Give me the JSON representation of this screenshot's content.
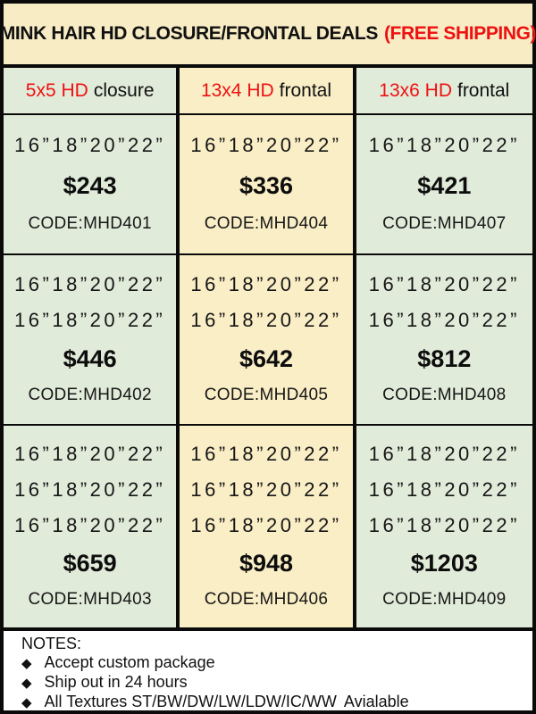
{
  "title": {
    "main": "MINK HAIR HD CLOSURE/FRONTAL DEALS",
    "highlight": "(FREE SHIPPING)"
  },
  "colors": {
    "accent_red": "#ee1111",
    "green_cell": "#e1ebda",
    "cream_cell": "#faeec6",
    "border": "#0a0a0a",
    "notes_bg": "#ffffff"
  },
  "columns": [
    {
      "size_label": "5x5 HD",
      "type_label": "closure",
      "deals": [
        {
          "sizes": [
            "16”18”20”22”"
          ],
          "price": "$243",
          "code": "CODE:MHD401"
        },
        {
          "sizes": [
            "16”18”20”22”",
            "16”18”20”22”"
          ],
          "price": "$446",
          "code": "CODE:MHD402"
        },
        {
          "sizes": [
            "16”18”20”22”",
            "16”18”20”22”",
            "16”18”20”22”"
          ],
          "price": "$659",
          "code": "CODE:MHD403"
        }
      ]
    },
    {
      "size_label": "13x4 HD",
      "type_label": "frontal",
      "deals": [
        {
          "sizes": [
            "16”18”20”22”"
          ],
          "price": "$336",
          "code": "CODE:MHD404"
        },
        {
          "sizes": [
            "16”18”20”22”",
            "16”18”20”22”"
          ],
          "price": "$642",
          "code": "CODE:MHD405"
        },
        {
          "sizes": [
            "16”18”20”22”",
            "16”18”20”22”",
            "16”18”20”22”"
          ],
          "price": "$948",
          "code": "CODE:MHD406"
        }
      ]
    },
    {
      "size_label": "13x6 HD",
      "type_label": "frontal",
      "deals": [
        {
          "sizes": [
            "16”18”20”22”"
          ],
          "price": "$421",
          "code": "CODE:MHD407"
        },
        {
          "sizes": [
            "16”18”20”22”",
            "16”18”20”22”"
          ],
          "price": "$812",
          "code": "CODE:MHD408"
        },
        {
          "sizes": [
            "16”18”20”22”",
            "16”18”20”22”",
            "16”18”20”22”"
          ],
          "price": "$1203",
          "code": "CODE:MHD409"
        }
      ]
    }
  ],
  "notes": {
    "title": "NOTES:",
    "bullet_icon": "◆",
    "items": [
      {
        "prefix": "Accept custom package",
        "underlined": "",
        "suffix": ""
      },
      {
        "prefix": "Ship out in 24 hours",
        "underlined": "",
        "suffix": ""
      },
      {
        "prefix": "All Textures ",
        "underlined": "ST/BW/DW/LW/LDW/IC/WW",
        "suffix": "Avialable"
      }
    ]
  }
}
